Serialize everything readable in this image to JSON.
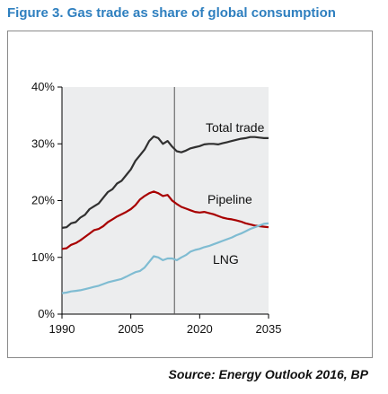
{
  "title": "Figure 3. Gas trade as share of global consumption",
  "source": "Source: Energy Outlook 2016, BP",
  "colors": {
    "title": "#2e7fbf",
    "plot_background": "#ecedee",
    "total_trade": "#303030",
    "pipeline": "#a80000",
    "lng": "#7fbcd2",
    "divider": "#555555"
  },
  "chart_data": {
    "type": "line",
    "title": "Figure 3. Gas trade as share of global consumption",
    "xlabel": "",
    "ylabel": "",
    "xlim": [
      1990,
      2035
    ],
    "ylim": [
      0,
      40
    ],
    "x_ticks": [
      1990,
      2005,
      2020,
      2035
    ],
    "x_tick_labels": [
      "1990",
      "2005",
      "2020",
      "2035"
    ],
    "y_ticks": [
      0,
      10,
      20,
      30,
      40
    ],
    "y_tick_labels": [
      "0%",
      "10%",
      "20%",
      "30%",
      "40%"
    ],
    "grid": false,
    "vertical_divider_x": 2014.5,
    "legend": "inline labels",
    "series": [
      {
        "name": "Total trade",
        "x": [
          1990,
          1991,
          1992,
          1993,
          1994,
          1995,
          1996,
          1997,
          1998,
          1999,
          2000,
          2001,
          2002,
          2003,
          2004,
          2005,
          2006,
          2007,
          2008,
          2009,
          2010,
          2011,
          2012,
          2013,
          2014,
          2015,
          2016,
          2017,
          2018,
          2019,
          2020,
          2021,
          2022,
          2023,
          2024,
          2025,
          2026,
          2027,
          2028,
          2029,
          2030,
          2031,
          2032,
          2033,
          2034,
          2035
        ],
        "values": [
          15.2,
          15.3,
          16.0,
          16.2,
          17.0,
          17.5,
          18.5,
          19.0,
          19.5,
          20.5,
          21.5,
          22.0,
          23.0,
          23.5,
          24.5,
          25.5,
          27.0,
          28.0,
          29.0,
          30.5,
          31.3,
          31.0,
          30.0,
          30.5,
          29.5,
          28.7,
          28.5,
          28.8,
          29.2,
          29.4,
          29.6,
          29.9,
          30.0,
          30.0,
          29.9,
          30.1,
          30.3,
          30.5,
          30.7,
          30.9,
          31.0,
          31.2,
          31.2,
          31.1,
          31.0,
          31.0
        ]
      },
      {
        "name": "Pipeline",
        "x": [
          1990,
          1991,
          1992,
          1993,
          1994,
          1995,
          1996,
          1997,
          1998,
          1999,
          2000,
          2001,
          2002,
          2003,
          2004,
          2005,
          2006,
          2007,
          2008,
          2009,
          2010,
          2011,
          2012,
          2013,
          2014,
          2015,
          2016,
          2017,
          2018,
          2019,
          2020,
          2021,
          2022,
          2023,
          2024,
          2025,
          2026,
          2027,
          2028,
          2029,
          2030,
          2031,
          2032,
          2033,
          2034,
          2035
        ],
        "values": [
          11.5,
          11.6,
          12.2,
          12.5,
          13.0,
          13.6,
          14.2,
          14.8,
          15.0,
          15.5,
          16.2,
          16.7,
          17.2,
          17.6,
          18.0,
          18.5,
          19.2,
          20.2,
          20.8,
          21.3,
          21.6,
          21.3,
          20.8,
          21.0,
          20.0,
          19.4,
          18.9,
          18.6,
          18.3,
          18.0,
          17.9,
          18.0,
          17.8,
          17.6,
          17.3,
          17.0,
          16.8,
          16.7,
          16.5,
          16.3,
          16.0,
          15.8,
          15.6,
          15.5,
          15.4,
          15.3
        ]
      },
      {
        "name": "LNG",
        "x": [
          1990,
          1991,
          1992,
          1993,
          1994,
          1995,
          1996,
          1997,
          1998,
          1999,
          2000,
          2001,
          2002,
          2003,
          2004,
          2005,
          2006,
          2007,
          2008,
          2009,
          2010,
          2011,
          2012,
          2013,
          2014,
          2015,
          2016,
          2017,
          2018,
          2019,
          2020,
          2021,
          2022,
          2023,
          2024,
          2025,
          2026,
          2027,
          2028,
          2029,
          2030,
          2031,
          2032,
          2033,
          2034,
          2035
        ],
        "values": [
          3.7,
          3.8,
          4.0,
          4.1,
          4.2,
          4.4,
          4.6,
          4.8,
          5.0,
          5.3,
          5.6,
          5.8,
          6.0,
          6.2,
          6.6,
          7.0,
          7.4,
          7.6,
          8.2,
          9.2,
          10.2,
          10.0,
          9.5,
          9.8,
          9.8,
          9.5,
          10.0,
          10.4,
          11.0,
          11.3,
          11.5,
          11.8,
          12.0,
          12.3,
          12.6,
          12.9,
          13.2,
          13.5,
          13.9,
          14.2,
          14.6,
          15.0,
          15.3,
          15.6,
          15.9,
          16.0
        ]
      }
    ]
  }
}
